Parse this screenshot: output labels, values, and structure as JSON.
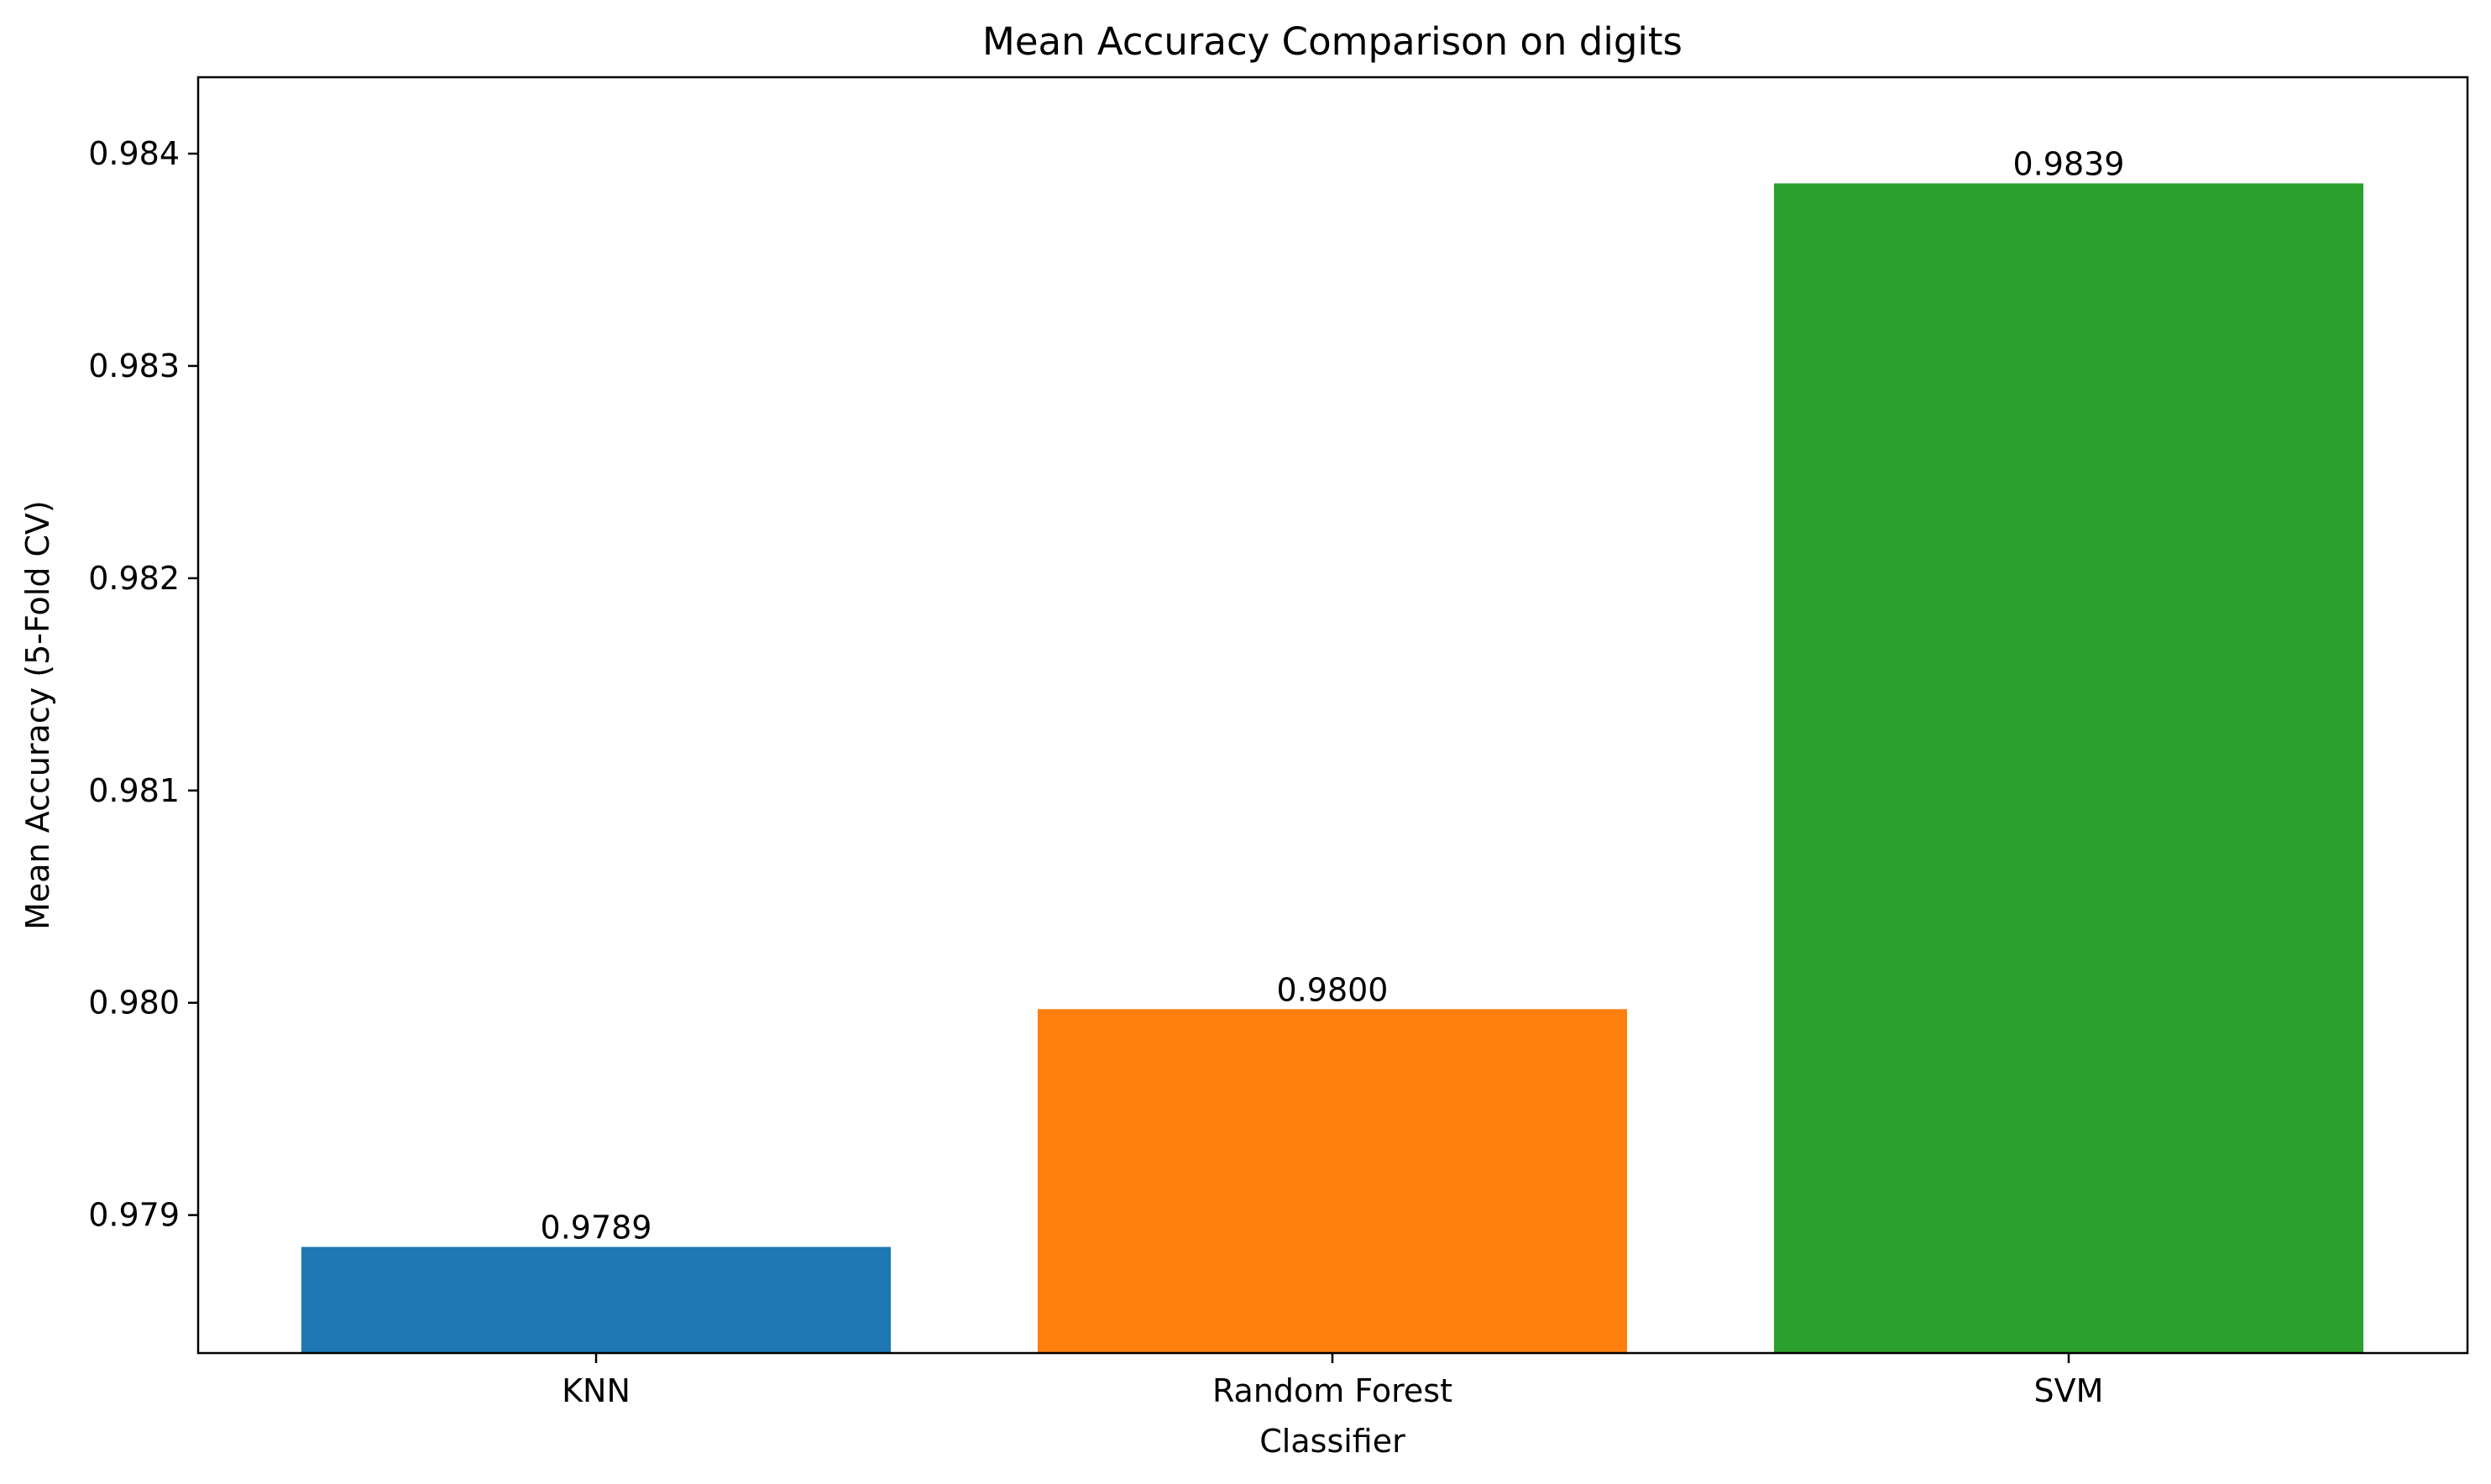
{
  "chart_data": {
    "type": "bar",
    "title": "Mean Accuracy Comparison on digits",
    "xlabel": "Classifier",
    "ylabel": "Mean Accuracy (5-Fold CV)",
    "categories": [
      "KNN",
      "Random Forest",
      "SVM"
    ],
    "values": [
      0.97885,
      0.97997,
      0.98386
    ],
    "data_labels": [
      "0.9789",
      "0.9800",
      "0.9839"
    ],
    "colors": [
      "#1f77b4",
      "#ff7f0e",
      "#2ca02c"
    ],
    "ylim": [
      0.97835,
      0.98436
    ],
    "yticks": [
      0.979,
      0.98,
      0.981,
      0.982,
      0.983,
      0.984
    ],
    "ytick_labels": [
      "0.979",
      "0.980",
      "0.981",
      "0.982",
      "0.983",
      "0.984"
    ],
    "grid": false,
    "legend": "none"
  }
}
